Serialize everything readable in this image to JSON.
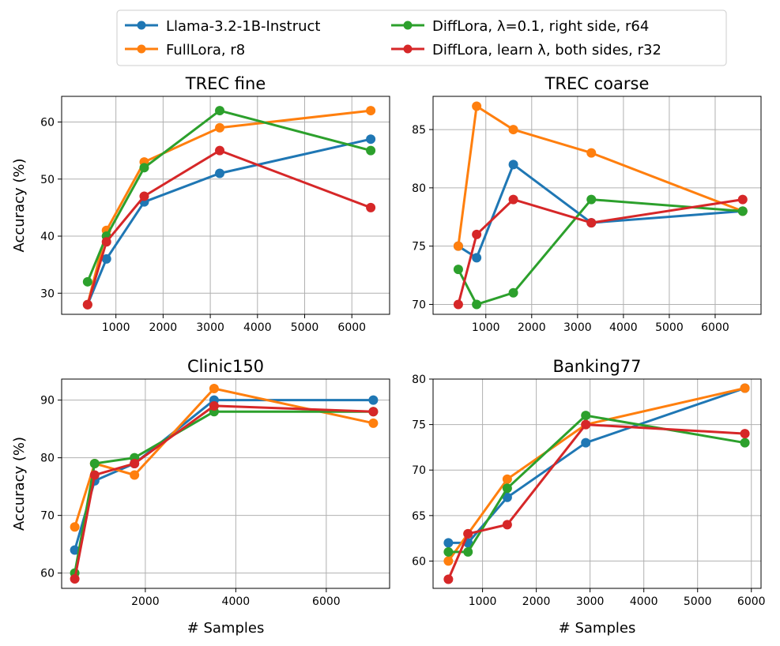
{
  "colors": {
    "llama": "#1f77b4",
    "fulllora": "#ff7f0e",
    "difflora_r64": "#2ca02c",
    "difflora_r32": "#d62728"
  },
  "legend": [
    {
      "key": "llama",
      "label": "Llama-3.2-1B-Instruct"
    },
    {
      "key": "fulllora",
      "label": "FullLora, r8"
    },
    {
      "key": "difflora_r64",
      "label": "DiffLora, λ=0.1, right side, r64"
    },
    {
      "key": "difflora_r32",
      "label": "DiffLora, learn λ, both sides, r32"
    }
  ],
  "chart_data": [
    {
      "type": "line",
      "title": "TREC fine",
      "xlabel": "",
      "ylabel": "Accuracy (%)",
      "xlim": [
        -150,
        6800
      ],
      "ylim": [
        26.3,
        64.5
      ],
      "xticks": [
        1000,
        2000,
        3000,
        4000,
        5000,
        6000
      ],
      "yticks": [
        30,
        40,
        50,
        60
      ],
      "series": [
        {
          "key": "llama",
          "x": [
            400,
            800,
            1600,
            3200,
            6400
          ],
          "y": [
            28,
            36,
            46,
            51,
            57
          ]
        },
        {
          "key": "fulllora",
          "x": [
            400,
            800,
            1600,
            3200,
            6400
          ],
          "y": [
            28,
            41,
            53,
            59,
            62
          ]
        },
        {
          "key": "difflora_r64",
          "x": [
            400,
            800,
            1600,
            3200,
            6400
          ],
          "y": [
            32,
            40,
            52,
            62,
            55
          ]
        },
        {
          "key": "difflora_r32",
          "x": [
            400,
            800,
            1600,
            3200,
            6400
          ],
          "y": [
            28,
            39,
            47,
            55,
            45
          ]
        }
      ]
    },
    {
      "type": "line",
      "title": "TREC coarse",
      "xlabel": "",
      "ylabel": "",
      "xlim": [
        -150,
        7000
      ],
      "ylim": [
        69.15,
        87.85
      ],
      "xticks": [
        1000,
        2000,
        3000,
        4000,
        5000,
        6000
      ],
      "yticks": [
        70,
        75,
        80,
        85
      ],
      "series": [
        {
          "key": "llama",
          "x": [
            400,
            800,
            1600,
            3300,
            6600
          ],
          "y": [
            75,
            74,
            82,
            77,
            78
          ]
        },
        {
          "key": "fulllora",
          "x": [
            400,
            800,
            1600,
            3300,
            6600
          ],
          "y": [
            75,
            87,
            85,
            83,
            78
          ]
        },
        {
          "key": "difflora_r64",
          "x": [
            400,
            800,
            1600,
            3300,
            6600
          ],
          "y": [
            73,
            70,
            71,
            79,
            78
          ]
        },
        {
          "key": "difflora_r32",
          "x": [
            400,
            800,
            1600,
            3300,
            6600
          ],
          "y": [
            70,
            76,
            79,
            77,
            79
          ]
        }
      ]
    },
    {
      "type": "line",
      "title": "Clinic150",
      "xlabel": "# Samples",
      "ylabel": "Accuracy (%)",
      "xlim": [
        150,
        7400
      ],
      "ylim": [
        57.35,
        93.65
      ],
      "xticks": [
        2000,
        4000,
        6000
      ],
      "yticks": [
        60,
        70,
        80,
        90
      ],
      "series": [
        {
          "key": "llama",
          "x": [
            440,
            880,
            1760,
            3520,
            7040
          ],
          "y": [
            64,
            76,
            79,
            90,
            90
          ]
        },
        {
          "key": "fulllora",
          "x": [
            440,
            880,
            1760,
            3520,
            7040
          ],
          "y": [
            68,
            79,
            77,
            92,
            86
          ]
        },
        {
          "key": "difflora_r64",
          "x": [
            440,
            880,
            1760,
            3520,
            7040
          ],
          "y": [
            60,
            79,
            80,
            88,
            88
          ]
        },
        {
          "key": "difflora_r32",
          "x": [
            440,
            880,
            1760,
            3520,
            7040
          ],
          "y": [
            59,
            77,
            79,
            89,
            88
          ]
        }
      ]
    },
    {
      "type": "line",
      "title": "Banking77",
      "xlabel": "# Samples",
      "ylabel": "",
      "xlim": [
        80,
        6180
      ],
      "ylim": [
        57.0,
        80.0
      ],
      "xticks": [
        1000,
        2000,
        3000,
        4000,
        5000,
        6000
      ],
      "yticks": [
        60,
        65,
        70,
        75,
        80
      ],
      "series": [
        {
          "key": "llama",
          "x": [
            365,
            730,
            1460,
            2920,
            5880
          ],
          "y": [
            62,
            62,
            67,
            73,
            79
          ]
        },
        {
          "key": "fulllora",
          "x": [
            365,
            730,
            1460,
            2920,
            5880
          ],
          "y": [
            60,
            63,
            69,
            75,
            79
          ]
        },
        {
          "key": "difflora_r64",
          "x": [
            365,
            730,
            1460,
            2920,
            5880
          ],
          "y": [
            61,
            61,
            68,
            76,
            73
          ]
        },
        {
          "key": "difflora_r32",
          "x": [
            365,
            730,
            1460,
            2920,
            5880
          ],
          "y": [
            58,
            63,
            64,
            75,
            74
          ]
        }
      ]
    }
  ]
}
